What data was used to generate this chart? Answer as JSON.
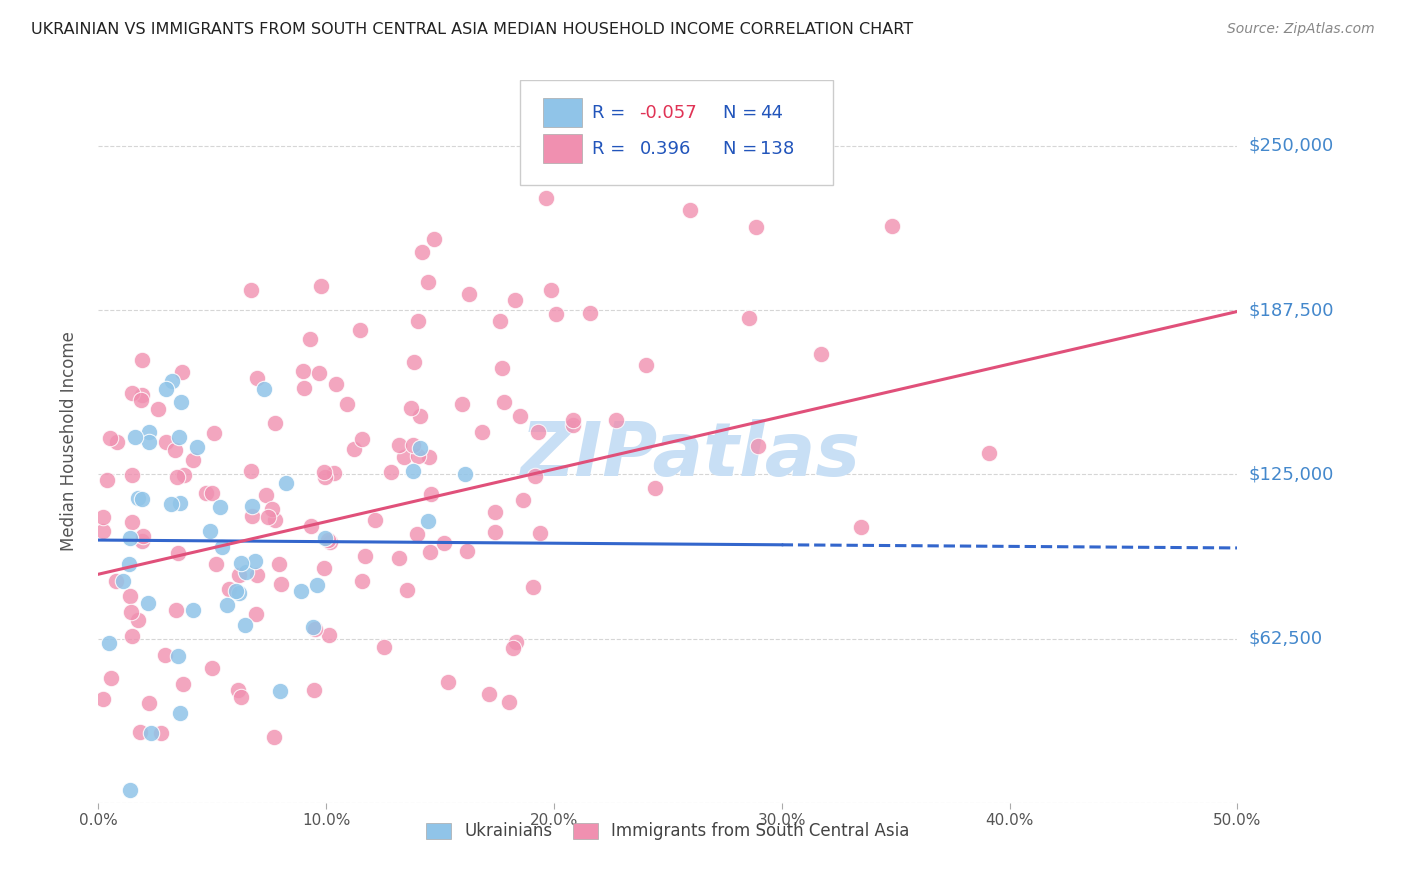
{
  "title": "UKRAINIAN VS IMMIGRANTS FROM SOUTH CENTRAL ASIA MEDIAN HOUSEHOLD INCOME CORRELATION CHART",
  "source": "Source: ZipAtlas.com",
  "ylabel": "Median Household Income",
  "yticks": [
    0,
    62500,
    125000,
    187500,
    250000
  ],
  "ytick_labels": [
    "",
    "$62,500",
    "$125,000",
    "$187,500",
    "$250,000"
  ],
  "ylim": [
    0,
    275000
  ],
  "xlim": [
    0.0,
    0.5
  ],
  "blue_color": "#90c4e8",
  "pink_color": "#f090b0",
  "blue_line_color": "#3366cc",
  "pink_line_color": "#e0507a",
  "watermark": "ZIPatlas",
  "watermark_color": "#c8dff5",
  "background_color": "#ffffff",
  "grid_color": "#cccccc",
  "label_color": "#4488cc",
  "title_color": "#222222",
  "source_color": "#888888",
  "blue_r": -0.057,
  "pink_r": 0.396,
  "blue_n": 44,
  "pink_n": 138,
  "blue_line_y0": 100000,
  "blue_line_y1": 97000,
  "pink_line_y0": 87000,
  "pink_line_y1": 187000,
  "legend_text_color": "#2255bb",
  "legend_r_neg_color": "#e03355",
  "legend_r_pos_color": "#2255bb",
  "legend_box_color": "#dddddd"
}
